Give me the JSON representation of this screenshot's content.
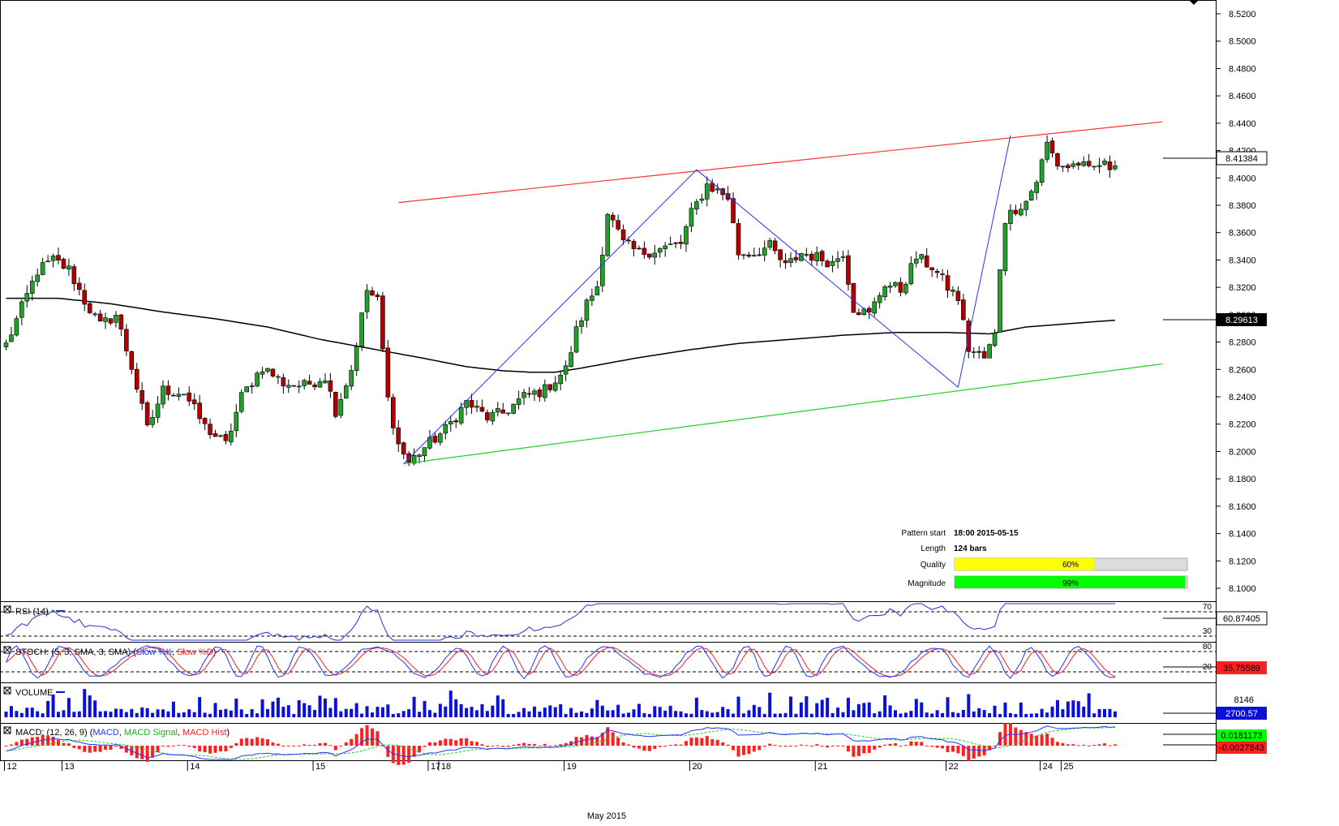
{
  "chart_data": {
    "type": "candlestick",
    "instrument_note": "",
    "price_axis": {
      "ticks": [
        "8.5200",
        "8.5000",
        "8.4800",
        "8.4600",
        "8.4400",
        "8.4200",
        "8.4000",
        "8.3800",
        "8.3600",
        "8.3400",
        "8.3200",
        "8.3000",
        "8.2800",
        "8.2600",
        "8.2400",
        "8.2200",
        "8.2000",
        "8.1800",
        "8.1600",
        "8.1400",
        "8.1200",
        "8.1000"
      ],
      "range": [
        8.0915,
        8.5292
      ]
    },
    "last_price_label": "8.41384",
    "ma_value_label": "8.29613",
    "date_axis": {
      "labels": [
        {
          "text": "12",
          "bar": 0
        },
        {
          "text": "13",
          "bar": 11
        },
        {
          "text": "14",
          "bar": 35
        },
        {
          "text": "15",
          "bar": 59
        },
        {
          "text": "17",
          "bar": 81
        },
        {
          "text": "18",
          "bar": 83
        },
        {
          "text": "19",
          "bar": 107
        },
        {
          "text": "20",
          "bar": 131
        },
        {
          "text": "21",
          "bar": 155
        },
        {
          "text": "22",
          "bar": 180
        },
        {
          "text": "24",
          "bar": 198
        },
        {
          "text": "25",
          "bar": 202
        }
      ],
      "month_label": "May 2015"
    },
    "price_anchors": [
      [
        0,
        8.278
      ],
      [
        3,
        8.305
      ],
      [
        6,
        8.332
      ],
      [
        9,
        8.34
      ],
      [
        12,
        8.333
      ],
      [
        15,
        8.31
      ],
      [
        18,
        8.292
      ],
      [
        21,
        8.3
      ],
      [
        24,
        8.262
      ],
      [
        27,
        8.216
      ],
      [
        30,
        8.245
      ],
      [
        34,
        8.243
      ],
      [
        38,
        8.218
      ],
      [
        42,
        8.205
      ],
      [
        45,
        8.24
      ],
      [
        49,
        8.262
      ],
      [
        53,
        8.25
      ],
      [
        57,
        8.248
      ],
      [
        61,
        8.255
      ],
      [
        63,
        8.23
      ],
      [
        66,
        8.26
      ],
      [
        69,
        8.318
      ],
      [
        71,
        8.31
      ],
      [
        73,
        8.238
      ],
      [
        75,
        8.205
      ],
      [
        77,
        8.192
      ],
      [
        80,
        8.203
      ],
      [
        84,
        8.216
      ],
      [
        88,
        8.236
      ],
      [
        92,
        8.225
      ],
      [
        95,
        8.228
      ],
      [
        99,
        8.24
      ],
      [
        103,
        8.245
      ],
      [
        107,
        8.26
      ],
      [
        109,
        8.288
      ],
      [
        111,
        8.308
      ],
      [
        113,
        8.321
      ],
      [
        115,
        8.375
      ],
      [
        118,
        8.352
      ],
      [
        121,
        8.345
      ],
      [
        125,
        8.348
      ],
      [
        129,
        8.352
      ],
      [
        131,
        8.374
      ],
      [
        134,
        8.395
      ],
      [
        138,
        8.386
      ],
      [
        140,
        8.345
      ],
      [
        143,
        8.345
      ],
      [
        146,
        8.35
      ],
      [
        149,
        8.335
      ],
      [
        152,
        8.345
      ],
      [
        155,
        8.342
      ],
      [
        158,
        8.338
      ],
      [
        160,
        8.346
      ],
      [
        162,
        8.305
      ],
      [
        165,
        8.3
      ],
      [
        168,
        8.323
      ],
      [
        171,
        8.318
      ],
      [
        174,
        8.342
      ],
      [
        177,
        8.335
      ],
      [
        180,
        8.32
      ],
      [
        182,
        8.312
      ],
      [
        184,
        8.275
      ],
      [
        187,
        8.268
      ],
      [
        189,
        8.285
      ],
      [
        190,
        8.335
      ],
      [
        191,
        8.37
      ],
      [
        193,
        8.378
      ],
      [
        195,
        8.383
      ],
      [
        197,
        8.398
      ],
      [
        199,
        8.425
      ],
      [
        201,
        8.41
      ],
      [
        203,
        8.408
      ],
      [
        205,
        8.411
      ],
      [
        207,
        8.405
      ],
      [
        209,
        8.41
      ],
      [
        211,
        8.408
      ],
      [
        212,
        8.413
      ]
    ],
    "ma200_anchors": [
      [
        0,
        8.312
      ],
      [
        10,
        8.312
      ],
      [
        20,
        8.308
      ],
      [
        30,
        8.302
      ],
      [
        40,
        8.297
      ],
      [
        50,
        8.291
      ],
      [
        60,
        8.282
      ],
      [
        70,
        8.275
      ],
      [
        80,
        8.268
      ],
      [
        88,
        8.262
      ],
      [
        95,
        8.259
      ],
      [
        100,
        8.258
      ],
      [
        105,
        8.258
      ],
      [
        110,
        8.261
      ],
      [
        120,
        8.268
      ],
      [
        130,
        8.274
      ],
      [
        140,
        8.279
      ],
      [
        150,
        8.282
      ],
      [
        160,
        8.285
      ],
      [
        170,
        8.287
      ],
      [
        180,
        8.287
      ],
      [
        188,
        8.286
      ],
      [
        195,
        8.291
      ],
      [
        205,
        8.294
      ],
      [
        212,
        8.296
      ]
    ],
    "pattern": {
      "upper_line": {
        "from": [
          75,
          8.382
        ],
        "to": [
          221,
          8.441
        ]
      },
      "lower_line": {
        "from": [
          76,
          8.191
        ],
        "to": [
          221,
          8.264
        ]
      },
      "zigzag": [
        [
          76,
          8.191
        ],
        [
          132,
          8.406
        ],
        [
          182,
          8.247
        ],
        [
          192,
          8.431
        ]
      ]
    },
    "pattern_info": {
      "start_label": "Pattern start",
      "start_value": "18:00 2015-05-15",
      "length_label": "Length",
      "length_value": "124 bars",
      "quality_label": "Quality",
      "quality_pct": 60,
      "quality_text": "60%",
      "magnitude_label": "Magnitude",
      "magnitude_pct": 99,
      "magnitude_text": "99%"
    },
    "indicators": {
      "rsi": {
        "title": "RSI (14)",
        "levels": [
          "70",
          "30"
        ],
        "value_label": "60.87405"
      },
      "stoch": {
        "title_prefix": "STOCH: (5, 3, SMA, 3, SMA) (",
        "k": "Slow %K",
        "sep": ", ",
        "d": "Slow %D",
        "title_suffix": ")",
        "levels": [
          "80",
          "20"
        ],
        "value_label": "35.75589"
      },
      "volume": {
        "title": "VOLUME",
        "scale_label": "8146",
        "value_label": "2700.57"
      },
      "macd": {
        "title_prefix": "MACD: (12, 26, 9) (",
        "macd": "MACD",
        "sep1": ", ",
        "signal": "MACD Signal",
        "sep2": ", ",
        "hist": "MACD Hist",
        "title_suffix": ")",
        "value_label_1": "0.0181173",
        "value_label_2": "-0.0027843"
      }
    },
    "colors": {
      "bull": "#22a02a",
      "bear": "#b00000",
      "ma": "#000000",
      "upper": "#ff3030",
      "lower": "#22cc22",
      "zigzag": "#2233ff",
      "rsi": "#2233cc",
      "stoch_k": "#2233ff",
      "stoch_d": "#ff2020",
      "volume": "#0a10d8",
      "macd": "#2233ff",
      "signal": "#22cc22",
      "hist": "#ff2020",
      "quality": "#ffff00",
      "magnitude": "#00ff00"
    }
  }
}
